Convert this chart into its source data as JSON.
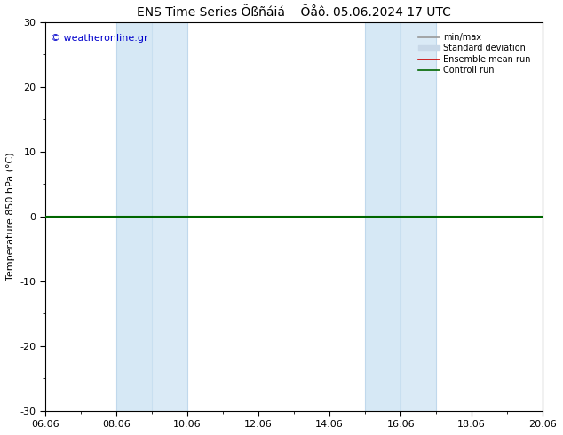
{
  "title": "ENS Time Series Õßñáiá    Õåô. 05.06.2024 17 UTC",
  "ylabel": "Temperature 850 hPa (°C)",
  "ylim": [
    -30,
    30
  ],
  "yticks": [
    -30,
    -20,
    -10,
    0,
    10,
    20,
    30
  ],
  "xtick_labels": [
    "06.06",
    "08.06",
    "10.06",
    "12.06",
    "14.06",
    "16.06",
    "18.06",
    "20.06"
  ],
  "xtick_positions": [
    0,
    2,
    4,
    6,
    8,
    10,
    12,
    14
  ],
  "xlim": [
    0,
    14
  ],
  "background_color": "#ffffff",
  "plot_bg_color": "#ffffff",
  "shaded_bands": [
    {
      "xstart": 2,
      "xend": 3,
      "color": "#d6e8f5"
    },
    {
      "xstart": 3,
      "xend": 4,
      "color": "#daeaf6"
    },
    {
      "xstart": 9,
      "xend": 10,
      "color": "#d6e8f5"
    },
    {
      "xstart": 10,
      "xend": 11,
      "color": "#daeaf6"
    }
  ],
  "band_borders": [
    {
      "x": 2,
      "color": "#c0d8ec"
    },
    {
      "x": 4,
      "color": "#c0d8ec"
    },
    {
      "x": 3,
      "color": "#c8dff0"
    },
    {
      "x": 9,
      "color": "#c0d8ec"
    },
    {
      "x": 11,
      "color": "#c0d8ec"
    },
    {
      "x": 10,
      "color": "#c8dff0"
    }
  ],
  "control_run_y": 0,
  "control_run_color": "#006600",
  "ensemble_mean_color": "#cc0000",
  "std_dev_color": "#c8d8e8",
  "minmax_color": "#999999",
  "watermark_text": "© weatheronline.gr",
  "watermark_color": "#0000cc",
  "legend_labels": [
    "min/max",
    "Standard deviation",
    "Ensemble mean run",
    "Controll run"
  ],
  "title_fontsize": 10,
  "ylabel_fontsize": 8,
  "tick_fontsize": 8,
  "legend_fontsize": 7
}
